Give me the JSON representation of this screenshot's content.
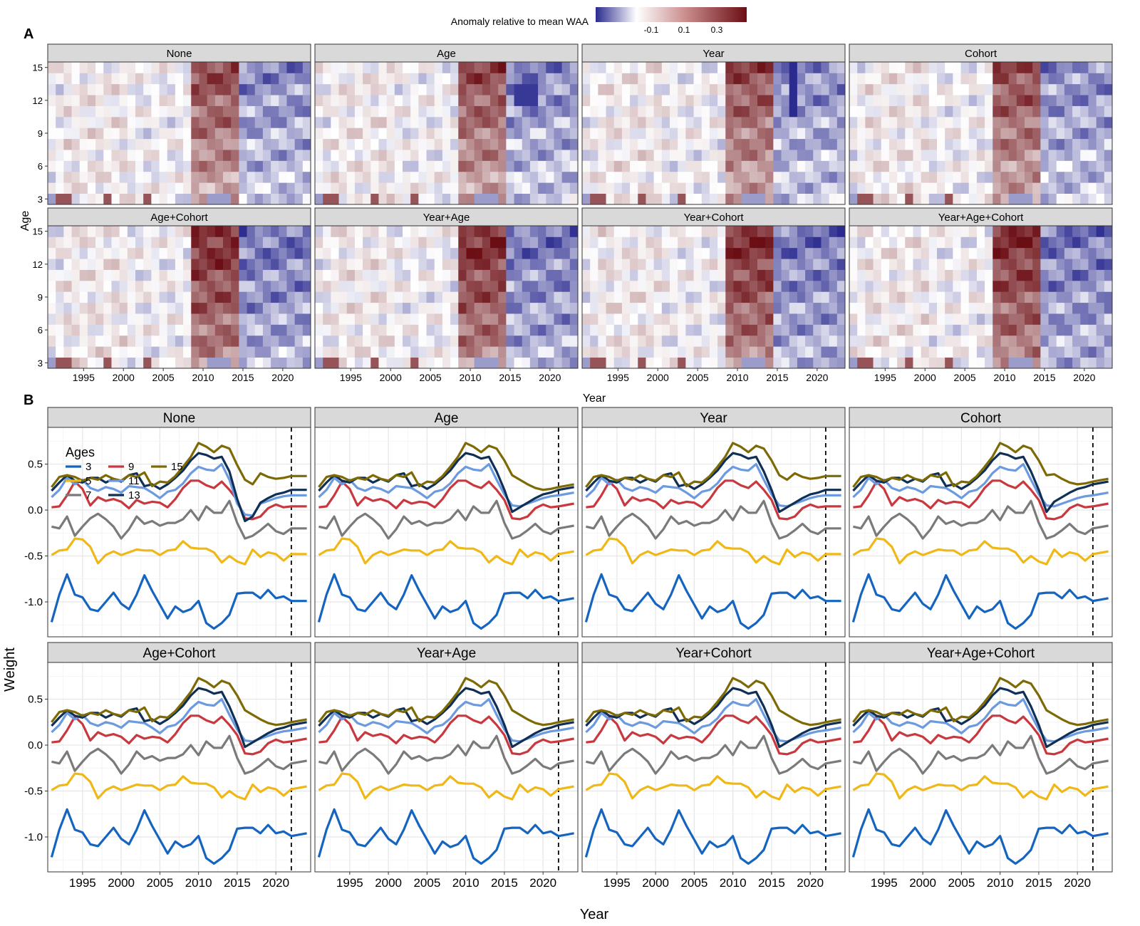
{
  "panel_a": {
    "label": "A",
    "legend_title": "Anomaly relative to mean WAA",
    "legend_ticks": [
      "-0.1",
      "0.1",
      "0.3"
    ],
    "facets": [
      "None",
      "Age",
      "Year",
      "Cohort",
      "Age+Cohort",
      "Year+Age",
      "Year+Cohort",
      "Year+Age+Cohort"
    ],
    "xlabel": "Year",
    "ylabel": "Age",
    "x_ticks": [
      "1995",
      "2000",
      "2005",
      "2010",
      "2015",
      "2020"
    ],
    "y_ticks": [
      "3",
      "6",
      "9",
      "12",
      "15"
    ]
  },
  "panel_b": {
    "label": "B",
    "legend_title": "Ages",
    "legend_labels": [
      "3",
      "5",
      "7",
      "9",
      "11",
      "13",
      "15"
    ],
    "facets": [
      "None",
      "Age",
      "Year",
      "Cohort",
      "Age+Cohort",
      "Year+Age",
      "Year+Cohort",
      "Year+Age+Cohort"
    ],
    "xlabel": "Year",
    "ylabel": "Weight",
    "x_ticks": [
      "1995",
      "2000",
      "2005",
      "2010",
      "2015",
      "2020"
    ],
    "y_ticks": [
      "-1.0",
      "-0.5",
      "0.0",
      "0.5"
    ]
  },
  "colors": {
    "strip_fill": "#d9d9d9",
    "low": "#2a2a8f",
    "mid": "#ffffff",
    "high": "#6b0e14",
    "age3": "#1565c0",
    "age5": "#f0b816",
    "age7": "#7a7a7a",
    "age9": "#c8383e",
    "age11": "#6b9ae0",
    "age13": "#0f2f55",
    "age15": "#7d6a05"
  },
  "chart_data": [
    {
      "type": "heatmap",
      "title": "",
      "xlabel": "Year",
      "ylabel": "Age",
      "x_range": [
        1991,
        2023
      ],
      "y_range": [
        3,
        15
      ],
      "color_scale": {
        "label": "Anomaly relative to mean WAA",
        "range": [
          -0.3,
          0.45
        ],
        "ticks": [
          -0.1,
          0.1,
          0.3
        ]
      },
      "facets": [
        "None",
        "Age",
        "Year",
        "Cohort",
        "Age+Cohort",
        "Year+Age",
        "Year+Cohort",
        "Year+Age+Cohort"
      ],
      "layout": "2 rows x 4 columns, shared axes",
      "pattern": {
        "strong_positive_years": [
          2009,
          2014
        ],
        "negative_years": [
          2016,
          2023
        ],
        "age3_peaks_positive": [
          1992,
          1993,
          1998,
          2003
        ],
        "age3_negative": [
          1991,
          2011,
          2012,
          2013
        ]
      }
    },
    {
      "type": "line",
      "title": "",
      "xlabel": "Year",
      "ylabel": "Weight",
      "ylim": [
        -1.38,
        0.9
      ],
      "x_range": [
        1990.5,
        2024.5
      ],
      "reference_line_x": 2022,
      "facets": [
        "None",
        "Age",
        "Year",
        "Cohort",
        "Age+Cohort",
        "Year+Age",
        "Year+Cohort",
        "Year+Age+Cohort"
      ],
      "x": [
        1991,
        1992,
        1993,
        1994,
        1995,
        1996,
        1997,
        1998,
        1999,
        2000,
        2001,
        2002,
        2003,
        2004,
        2005,
        2006,
        2007,
        2008,
        2009,
        2010,
        2011,
        2012,
        2013,
        2014,
        2015,
        2016,
        2017,
        2018,
        2019,
        2020,
        2021,
        2022
      ],
      "series": [
        {
          "name": "3",
          "values": [
            -1.22,
            -0.92,
            -0.7,
            -0.92,
            -0.95,
            -1.08,
            -1.1,
            -1.0,
            -0.9,
            -1.02,
            -1.08,
            -0.92,
            -0.71,
            -0.88,
            -1.03,
            -1.18,
            -1.05,
            -1.11,
            -1.08,
            -0.99,
            -1.23,
            -1.29,
            -1.23,
            -1.14,
            -0.91,
            -0.9,
            -0.9,
            -0.96,
            -0.87,
            -0.96,
            -0.94,
            -0.99
          ]
        },
        {
          "name": "5",
          "values": [
            -0.49,
            -0.44,
            -0.43,
            -0.31,
            -0.32,
            -0.4,
            -0.58,
            -0.49,
            -0.45,
            -0.49,
            -0.46,
            -0.43,
            -0.44,
            -0.44,
            -0.49,
            -0.44,
            -0.43,
            -0.34,
            -0.41,
            -0.42,
            -0.42,
            -0.46,
            -0.57,
            -0.5,
            -0.56,
            -0.59,
            -0.43,
            -0.51,
            -0.46,
            -0.48,
            -0.55,
            -0.48
          ]
        },
        {
          "name": "7",
          "values": [
            -0.18,
            -0.2,
            -0.07,
            -0.28,
            -0.18,
            -0.09,
            -0.04,
            -0.1,
            -0.18,
            -0.31,
            -0.21,
            -0.07,
            -0.15,
            -0.12,
            -0.17,
            -0.14,
            -0.14,
            -0.1,
            0.0,
            -0.11,
            0.04,
            -0.03,
            -0.03,
            0.1,
            -0.14,
            -0.31,
            -0.28,
            -0.22,
            -0.15,
            -0.23,
            -0.26,
            -0.2
          ]
        },
        {
          "name": "9",
          "values": [
            0.03,
            0.04,
            0.16,
            0.31,
            0.23,
            0.05,
            0.14,
            0.1,
            0.12,
            0.09,
            0.02,
            0.11,
            0.07,
            0.09,
            0.08,
            0.03,
            0.12,
            0.24,
            0.32,
            0.32,
            0.27,
            0.24,
            0.31,
            0.22,
            0.11,
            -0.09,
            -0.1,
            -0.07,
            0.02,
            0.06,
            0.03,
            0.04
          ]
        },
        {
          "name": "11",
          "values": [
            0.14,
            0.22,
            0.35,
            0.28,
            0.33,
            0.24,
            0.21,
            0.25,
            0.23,
            0.19,
            0.26,
            0.25,
            0.24,
            0.19,
            0.13,
            0.2,
            0.22,
            0.29,
            0.4,
            0.47,
            0.44,
            0.43,
            0.5,
            0.33,
            0.17,
            0.05,
            0.04,
            0.07,
            0.1,
            0.13,
            0.15,
            0.16
          ]
        },
        {
          "name": "13",
          "values": [
            0.21,
            0.3,
            0.38,
            0.32,
            0.3,
            0.35,
            0.35,
            0.3,
            0.34,
            0.31,
            0.38,
            0.4,
            0.26,
            0.28,
            0.23,
            0.28,
            0.35,
            0.43,
            0.54,
            0.62,
            0.6,
            0.56,
            0.58,
            0.42,
            0.22,
            -0.02,
            0.03,
            0.08,
            0.13,
            0.17,
            0.19,
            0.22
          ]
        },
        {
          "name": "15",
          "values": [
            0.25,
            0.36,
            0.38,
            0.36,
            0.32,
            0.35,
            0.33,
            0.38,
            0.34,
            0.32,
            0.38,
            0.36,
            0.41,
            0.26,
            0.31,
            0.3,
            0.37,
            0.47,
            0.58,
            0.73,
            0.69,
            0.63,
            0.7,
            0.67,
            0.54,
            0.38,
            0.33,
            0.28,
            0.24,
            0.22,
            0.23,
            0.25
          ]
        }
      ]
    }
  ]
}
